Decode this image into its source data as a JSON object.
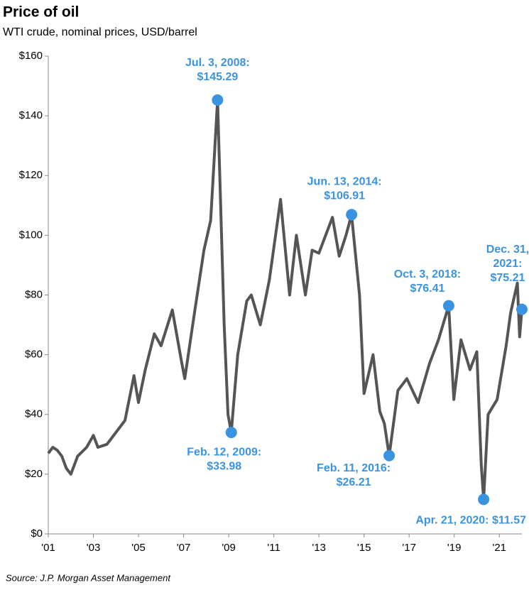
{
  "chart_data": {
    "type": "line",
    "title": "Price of oil",
    "subtitle": "WTI crude, nominal prices, USD/barrel",
    "source": "Source:  J.P. Morgan Asset Management",
    "x": [
      2001.0,
      2001.2,
      2001.4,
      2001.6,
      2001.8,
      2002.0,
      2002.3,
      2002.7,
      2003.0,
      2003.2,
      2003.6,
      2004.0,
      2004.4,
      2004.8,
      2005.0,
      2005.3,
      2005.7,
      2006.0,
      2006.5,
      2006.9,
      2007.05,
      2007.5,
      2007.9,
      2008.2,
      2008.505,
      2008.8,
      2008.97,
      2009.115,
      2009.4,
      2009.8,
      2010.0,
      2010.4,
      2010.8,
      2011.3,
      2011.7,
      2012.0,
      2012.4,
      2012.7,
      2013.0,
      2013.6,
      2013.9,
      2014.2,
      2014.448,
      2014.8,
      2015.0,
      2015.4,
      2015.7,
      2015.9,
      2016.115,
      2016.5,
      2016.9,
      2017.4,
      2017.9,
      2018.3,
      2018.755,
      2018.98,
      2019.3,
      2019.7,
      2020.0,
      2020.2,
      2020.303,
      2020.5,
      2020.9,
      2021.3,
      2021.5,
      2021.8,
      2021.9,
      2021.999
    ],
    "series": [
      {
        "name": "WTI crude",
        "color": "#555555",
        "values": [
          27,
          29,
          28,
          26,
          22,
          20,
          26,
          29,
          33,
          29,
          30,
          34,
          38,
          53,
          44,
          55,
          67,
          63,
          75,
          58,
          52,
          75,
          95,
          105,
          145.29,
          70,
          40,
          33.98,
          60,
          78,
          80,
          70,
          85,
          112,
          80,
          100,
          80,
          95,
          94,
          106,
          93,
          100,
          106.91,
          80,
          47,
          60,
          41,
          37,
          26.21,
          48,
          52,
          44,
          57,
          65,
          76.41,
          45,
          65,
          55,
          61,
          23,
          11.57,
          40,
          45,
          63,
          74,
          84,
          66,
          75.21
        ]
      }
    ],
    "annotations": [
      {
        "x": 2008.505,
        "value": 145.29,
        "lines": [
          "Jul. 3, 2008:",
          "$145.29"
        ]
      },
      {
        "x": 2009.115,
        "value": 33.98,
        "lines": [
          "Feb. 12, 2009:",
          "$33.98"
        ]
      },
      {
        "x": 2014.448,
        "value": 106.91,
        "lines": [
          "Jun. 13, 2014:",
          "$106.91"
        ]
      },
      {
        "x": 2016.115,
        "value": 26.21,
        "lines": [
          "Feb. 11, 2016:",
          "$26.21"
        ]
      },
      {
        "x": 2018.755,
        "value": 76.41,
        "lines": [
          "Oct. 3, 2018:",
          "$76.41"
        ]
      },
      {
        "x": 2021.999,
        "value": 75.21,
        "lines": [
          "Dec. 31,",
          "2021:",
          "$75.21"
        ]
      },
      {
        "x": 2020.303,
        "value": 11.57,
        "lines": [
          "Apr. 21, 2020: $11.57"
        ]
      }
    ],
    "xlim": [
      2001,
      2022
    ],
    "xticks": [
      {
        "value": 2001,
        "label": "'01"
      },
      {
        "value": 2003,
        "label": "'03"
      },
      {
        "value": 2005,
        "label": "'05"
      },
      {
        "value": 2007,
        "label": "'07"
      },
      {
        "value": 2009,
        "label": "'09"
      },
      {
        "value": 2011,
        "label": "'11"
      },
      {
        "value": 2013,
        "label": "'13"
      },
      {
        "value": 2015,
        "label": "'15"
      },
      {
        "value": 2017,
        "label": "'17"
      },
      {
        "value": 2019,
        "label": "'19"
      },
      {
        "value": 2021,
        "label": "'21"
      }
    ],
    "ylim": [
      0,
      160
    ],
    "yticks": [
      {
        "value": 0,
        "label": "$0"
      },
      {
        "value": 20,
        "label": "$20"
      },
      {
        "value": 40,
        "label": "$40"
      },
      {
        "value": 60,
        "label": "$60"
      },
      {
        "value": 80,
        "label": "$80"
      },
      {
        "value": 100,
        "label": "$100"
      },
      {
        "value": 120,
        "label": "$120"
      },
      {
        "value": 140,
        "label": "$140"
      },
      {
        "value": 160,
        "label": "$160"
      }
    ],
    "marker_color": "#3a93e0"
  }
}
